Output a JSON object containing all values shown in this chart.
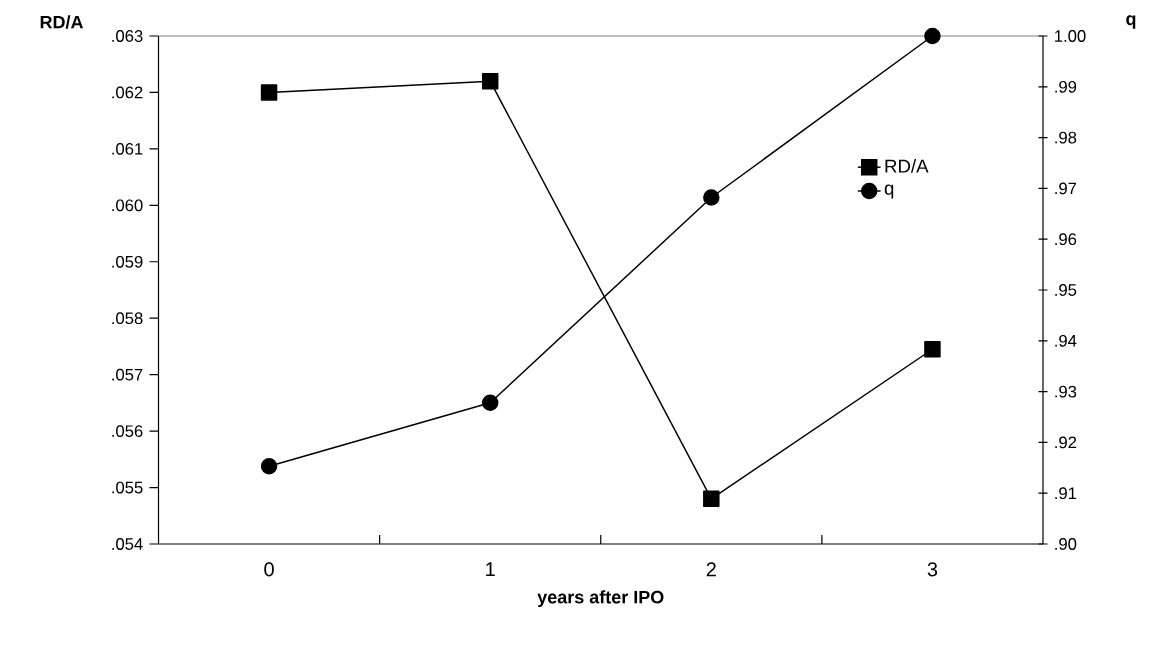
{
  "chart_data": {
    "type": "line",
    "xlabel": "years after IPO",
    "ylabel": "RD/A",
    "y2label": "q",
    "categories": [
      "0",
      "1",
      "2",
      "3"
    ],
    "series": [
      {
        "name": "RD/A",
        "color": "#000000",
        "marker": "square",
        "values": [
          0.062,
          0.0622,
          0.0548,
          0.05745
        ]
      },
      {
        "name": "q",
        "color": "#000000",
        "marker": "circle",
        "axis": "y2",
        "values": [
          0.9153,
          0.9278,
          0.9682,
          1.0
        ]
      }
    ],
    "ylim": [
      0.054,
      0.063
    ],
    "yticks": [
      {
        "value": 0.054,
        "label": ".054"
      },
      {
        "value": 0.055,
        "label": ".055"
      },
      {
        "value": 0.056,
        "label": ".056"
      },
      {
        "value": 0.057,
        "label": ".057"
      },
      {
        "value": 0.058,
        "label": ".058"
      },
      {
        "value": 0.059,
        "label": ".059"
      },
      {
        "value": 0.06,
        "label": ".060"
      },
      {
        "value": 0.061,
        "label": ".061"
      },
      {
        "value": 0.062,
        "label": ".062"
      },
      {
        "value": 0.063,
        "label": ".063"
      }
    ],
    "y2lim": [
      0.9,
      1.0
    ],
    "y2ticks": [
      {
        "value": 0.9,
        "label": ".90"
      },
      {
        "value": 0.91,
        "label": ".91"
      },
      {
        "value": 0.92,
        "label": ".92"
      },
      {
        "value": 0.93,
        "label": ".93"
      },
      {
        "value": 0.94,
        "label": ".94"
      },
      {
        "value": 0.95,
        "label": ".95"
      },
      {
        "value": 0.96,
        "label": ".96"
      },
      {
        "value": 0.97,
        "label": ".97"
      },
      {
        "value": 0.98,
        "label": ".98"
      },
      {
        "value": 0.99,
        "label": ".99"
      },
      {
        "value": 1.0,
        "label": "1.00"
      }
    ],
    "legend": "right",
    "line_style": "solid"
  }
}
